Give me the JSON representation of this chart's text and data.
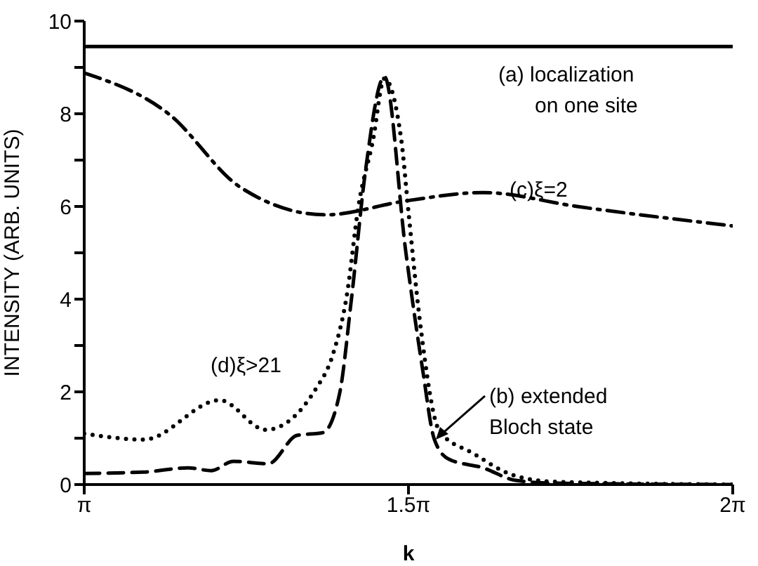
{
  "chart_data": {
    "type": "line",
    "xlabel": "k",
    "ylabel": "INTENSITY  (ARB. UNITS)",
    "xlim": [
      3.1416,
      6.2832
    ],
    "xticks": [
      {
        "value": 3.1416,
        "label": "π"
      },
      {
        "value": 4.7124,
        "label": "1.5π"
      },
      {
        "value": 6.2832,
        "label": "2π"
      }
    ],
    "ylim": [
      0,
      10
    ],
    "yticks": [
      0,
      {
        "value": 1,
        "label": null
      },
      2,
      {
        "value": 3,
        "label": null
      },
      4,
      {
        "value": 5,
        "label": null
      },
      6,
      {
        "value": 7,
        "label": null
      },
      8,
      {
        "value": 9,
        "label": null
      },
      10
    ],
    "marker": "none",
    "series": [
      {
        "color": "#000000",
        "line_style": "solid",
        "x": [
          3.1416,
          6.2832
        ],
        "values": [
          9.45,
          9.45
        ]
      },
      {
        "color": "#000000",
        "line_style": "dashed",
        "x": [
          3.1416,
          3.431,
          3.644,
          3.757,
          3.864,
          4.034,
          4.172,
          4.298,
          4.379,
          4.436,
          4.505,
          4.596,
          4.7,
          4.781,
          4.838,
          4.907,
          5.074,
          5.231,
          5.419,
          6.2832
        ],
        "values": [
          0.24,
          0.27,
          0.36,
          0.3,
          0.5,
          0.45,
          1.06,
          1.12,
          1.97,
          4.0,
          6.8,
          8.8,
          5.0,
          2.48,
          0.97,
          0.55,
          0.36,
          0.09,
          0.03,
          0
        ]
      },
      {
        "color": "#000000",
        "line_style": "dashdot",
        "x": [
          3.1416,
          3.55,
          3.896,
          4.31,
          4.7,
          5.074,
          5.529,
          6.2832
        ],
        "values": [
          8.88,
          8.0,
          6.42,
          5.82,
          6.12,
          6.3,
          6.0,
          5.58
        ]
      },
      {
        "color": "#000000",
        "line_style": "dotted",
        "x": [
          3.1416,
          3.431,
          3.798,
          4.021,
          4.263,
          4.345,
          4.414,
          4.47,
          4.54,
          4.596,
          4.678,
          4.712,
          4.769,
          4.863,
          5.027,
          5.215,
          5.419,
          6.2832
        ],
        "values": [
          1.1,
          0.97,
          1.82,
          1.18,
          2.06,
          2.79,
          4.09,
          6.0,
          7.42,
          8.76,
          7.42,
          5.9,
          3.48,
          1.15,
          0.67,
          0.21,
          0.06,
          0
        ]
      }
    ],
    "annotations": [
      "(a) localization\non one site",
      {
        "text": "(b) extended\nBloch state",
        "x": 4.838,
        "y": 0.97
      },
      "(c)ξ=2",
      "(d)ξ>21"
    ]
  }
}
